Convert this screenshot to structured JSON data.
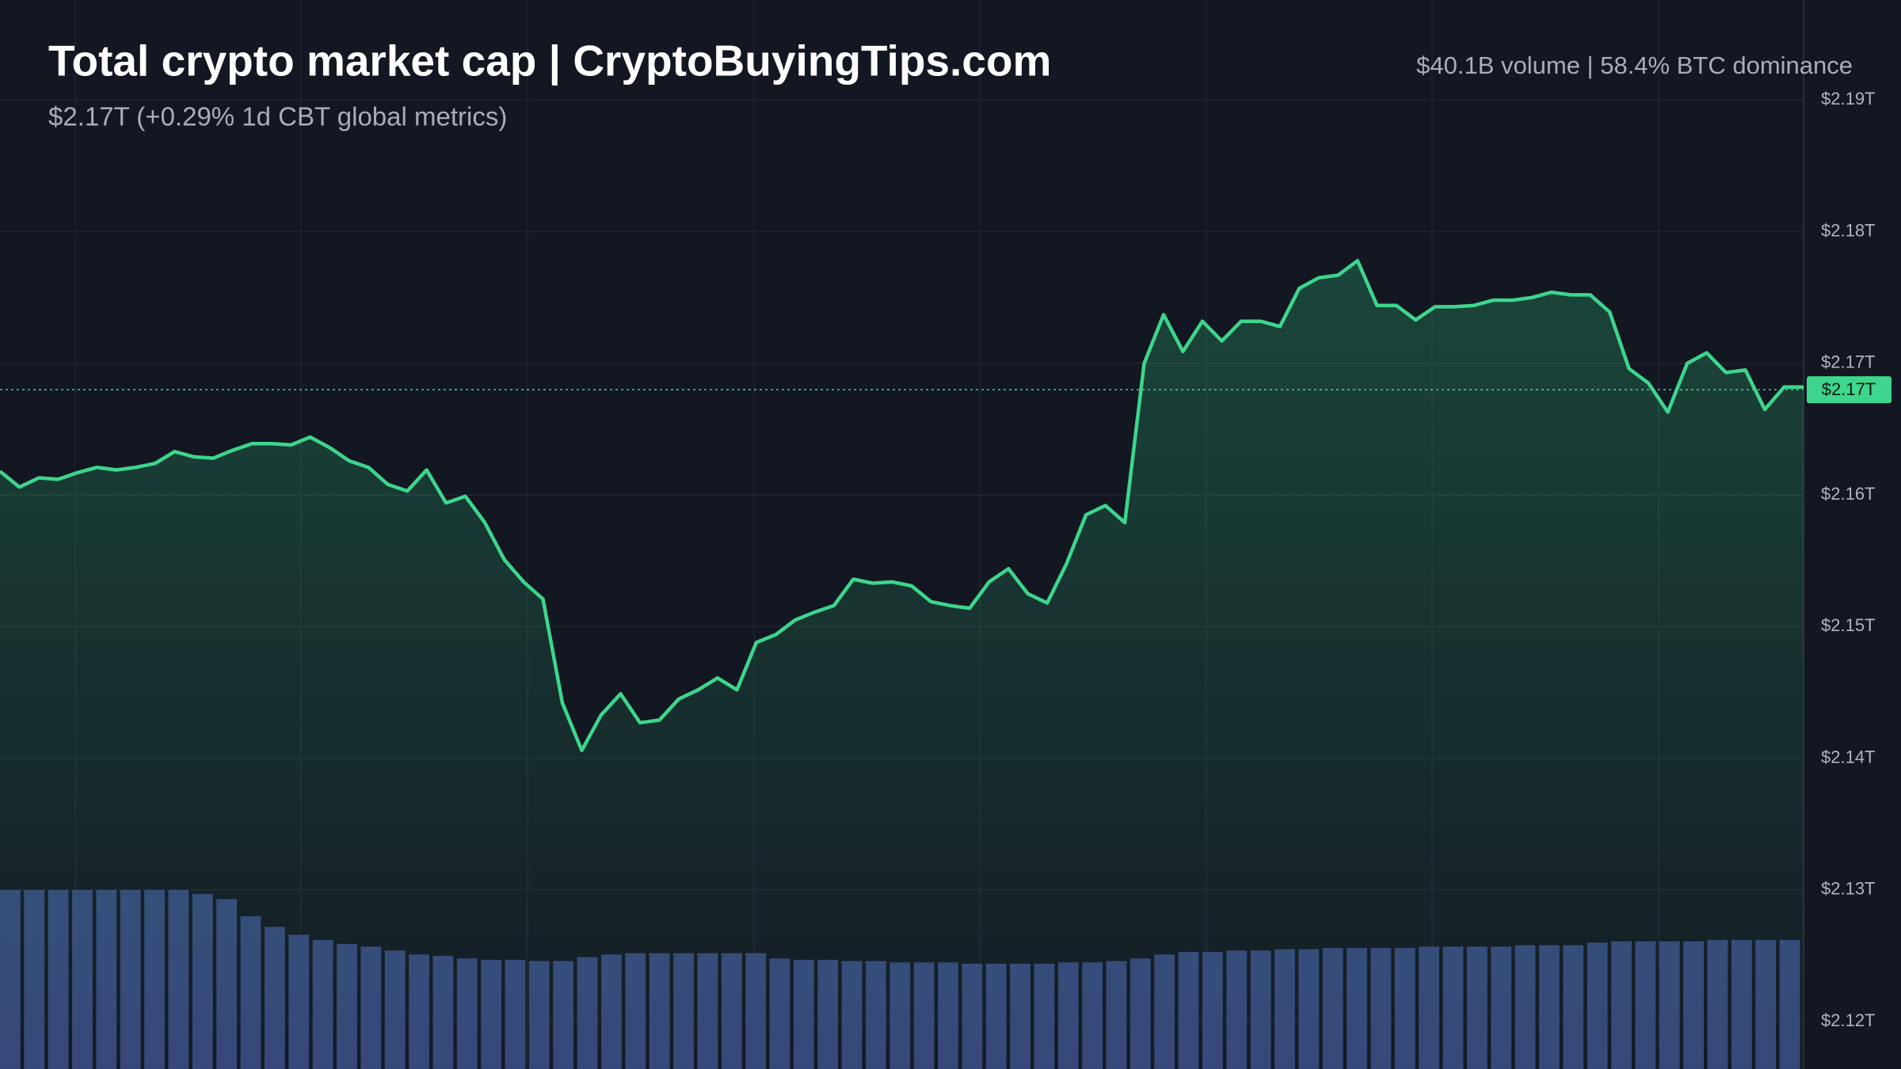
{
  "chart_data": {
    "type": "line",
    "title": "Total crypto market cap | CryptoBuyingTips.com",
    "subtitle": "$2.17T (+0.29% 1d CBT global metrics)",
    "annotation": "$40.1B volume | 58.4% BTC dominance",
    "color": "#3dd68c",
    "area": true,
    "grid": true,
    "values": [
      2.1618,
      2.1606,
      2.1613,
      2.1612,
      2.1617,
      2.1621,
      2.1619,
      2.1621,
      2.1624,
      2.1633,
      2.1629,
      2.1628,
      2.1634,
      2.1639,
      2.1639,
      2.1638,
      2.1644,
      2.1636,
      2.1626,
      2.1621,
      2.1608,
      2.1603,
      2.1619,
      2.1594,
      2.1599,
      2.1579,
      2.1551,
      2.1534,
      2.1521,
      2.1442,
      2.1406,
      2.1433,
      2.1449,
      2.1427,
      2.1429,
      2.1445,
      2.1452,
      2.1461,
      2.1452,
      2.1488,
      2.1494,
      2.1505,
      2.1511,
      2.1516,
      2.1536,
      2.1533,
      2.1534,
      2.1531,
      2.1519,
      2.1516,
      2.1514,
      2.1534,
      2.1544,
      2.1525,
      2.1518,
      2.1548,
      2.1585,
      2.1592,
      2.1579,
      2.17,
      2.1737,
      2.1709,
      2.1732,
      2.1717,
      2.1732,
      2.1732,
      2.1728,
      2.1757,
      2.1765,
      2.1767,
      2.1778,
      2.1744,
      2.1744,
      2.1733,
      2.1743,
      2.1743,
      2.1744,
      2.1748,
      2.1748,
      2.175,
      2.1754,
      2.1752,
      2.1752,
      2.1739,
      2.1696,
      2.1685,
      2.1663,
      2.17,
      2.1708,
      2.1693,
      2.1695,
      2.1665,
      2.1682,
      2.1682
    ],
    "last_price": {
      "value": 2.168,
      "label": "$2.17T"
    },
    "volume": {
      "color": "#36467a",
      "values": [
        2.13,
        2.13,
        2.13,
        2.13,
        2.13,
        2.13,
        2.13,
        2.13,
        2.1297,
        2.1293,
        2.128,
        2.1272,
        2.1266,
        2.1262,
        2.1259,
        2.1257,
        2.1254,
        2.1251,
        2.125,
        2.1248,
        2.1247,
        2.1247,
        2.1246,
        2.1246,
        2.1249,
        2.1251,
        2.1252,
        2.1252,
        2.1252,
        2.1252,
        2.1252,
        2.1252,
        2.1248,
        2.1247,
        2.1247,
        2.1246,
        2.1246,
        2.1245,
        2.1245,
        2.1245,
        2.1244,
        2.1244,
        2.1244,
        2.1244,
        2.1245,
        2.1245,
        2.1246,
        2.1248,
        2.1251,
        2.1253,
        2.1253,
        2.1254,
        2.1254,
        2.1255,
        2.1255,
        2.1256,
        2.1256,
        2.1256,
        2.1256,
        2.1257,
        2.1257,
        2.1257,
        2.1257,
        2.1258,
        2.1258,
        2.1258,
        2.126,
        2.1261,
        2.1261,
        2.1261,
        2.1261,
        2.1262,
        2.1262,
        2.1262,
        2.1262
      ]
    },
    "ylim": [
      2.1164,
      2.1976
    ],
    "yticks": [
      {
        "value": 2.12,
        "label": "$2.12T"
      },
      {
        "value": 2.13,
        "label": "$2.13T"
      },
      {
        "value": 2.14,
        "label": "$2.14T"
      },
      {
        "value": 2.15,
        "label": "$2.15T"
      },
      {
        "value": 2.16,
        "label": "$2.16T"
      },
      {
        "value": 2.17,
        "label": "$2.17T"
      },
      {
        "value": 2.18,
        "label": "$2.18T"
      },
      {
        "value": 2.19,
        "label": "$2.19T"
      }
    ]
  }
}
